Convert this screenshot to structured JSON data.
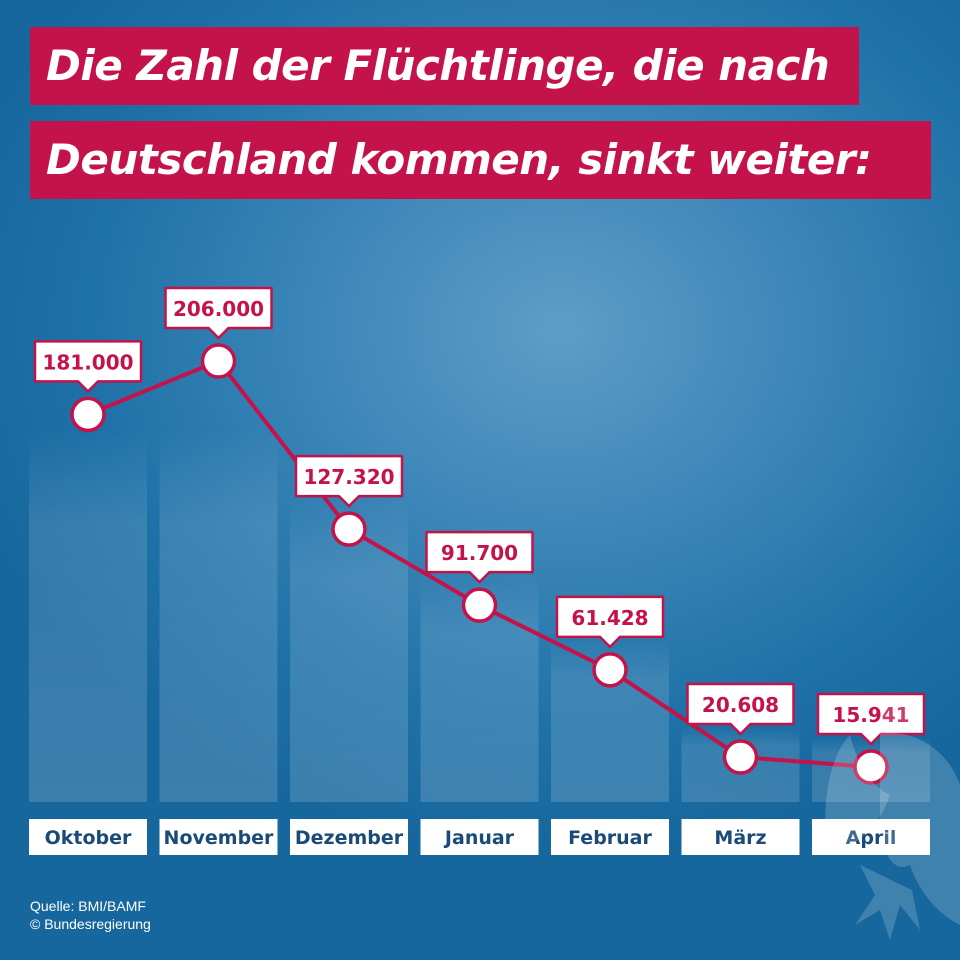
{
  "title_line1": "Die Zahl der Flüchtlinge, die nach",
  "title_line2": "Deutschland kommen, sinkt weiter:",
  "source_line1": "Quelle: BMI/BAMF",
  "source_line2": "© Bundesregierung",
  "colors": {
    "accent": "#c4124a",
    "background": "#1f72a8",
    "label_box": "#ffffff",
    "month_text": "#1a4a78"
  },
  "chart_data": {
    "type": "line",
    "categories": [
      "Oktober",
      "November",
      "Dezember",
      "Januar",
      "Februar",
      "März",
      "April"
    ],
    "values": [
      181000,
      206000,
      127320,
      91700,
      61428,
      20608,
      15941
    ],
    "data_labels": [
      "181.000",
      "206.000",
      "127.320",
      "91.700",
      "61.428",
      "20.608",
      "15.941"
    ],
    "title": "Die Zahl der Flüchtlinge, die nach Deutschland kommen, sinkt weiter:",
    "xlabel": "",
    "ylabel": "",
    "grid": false,
    "legend": "none"
  }
}
